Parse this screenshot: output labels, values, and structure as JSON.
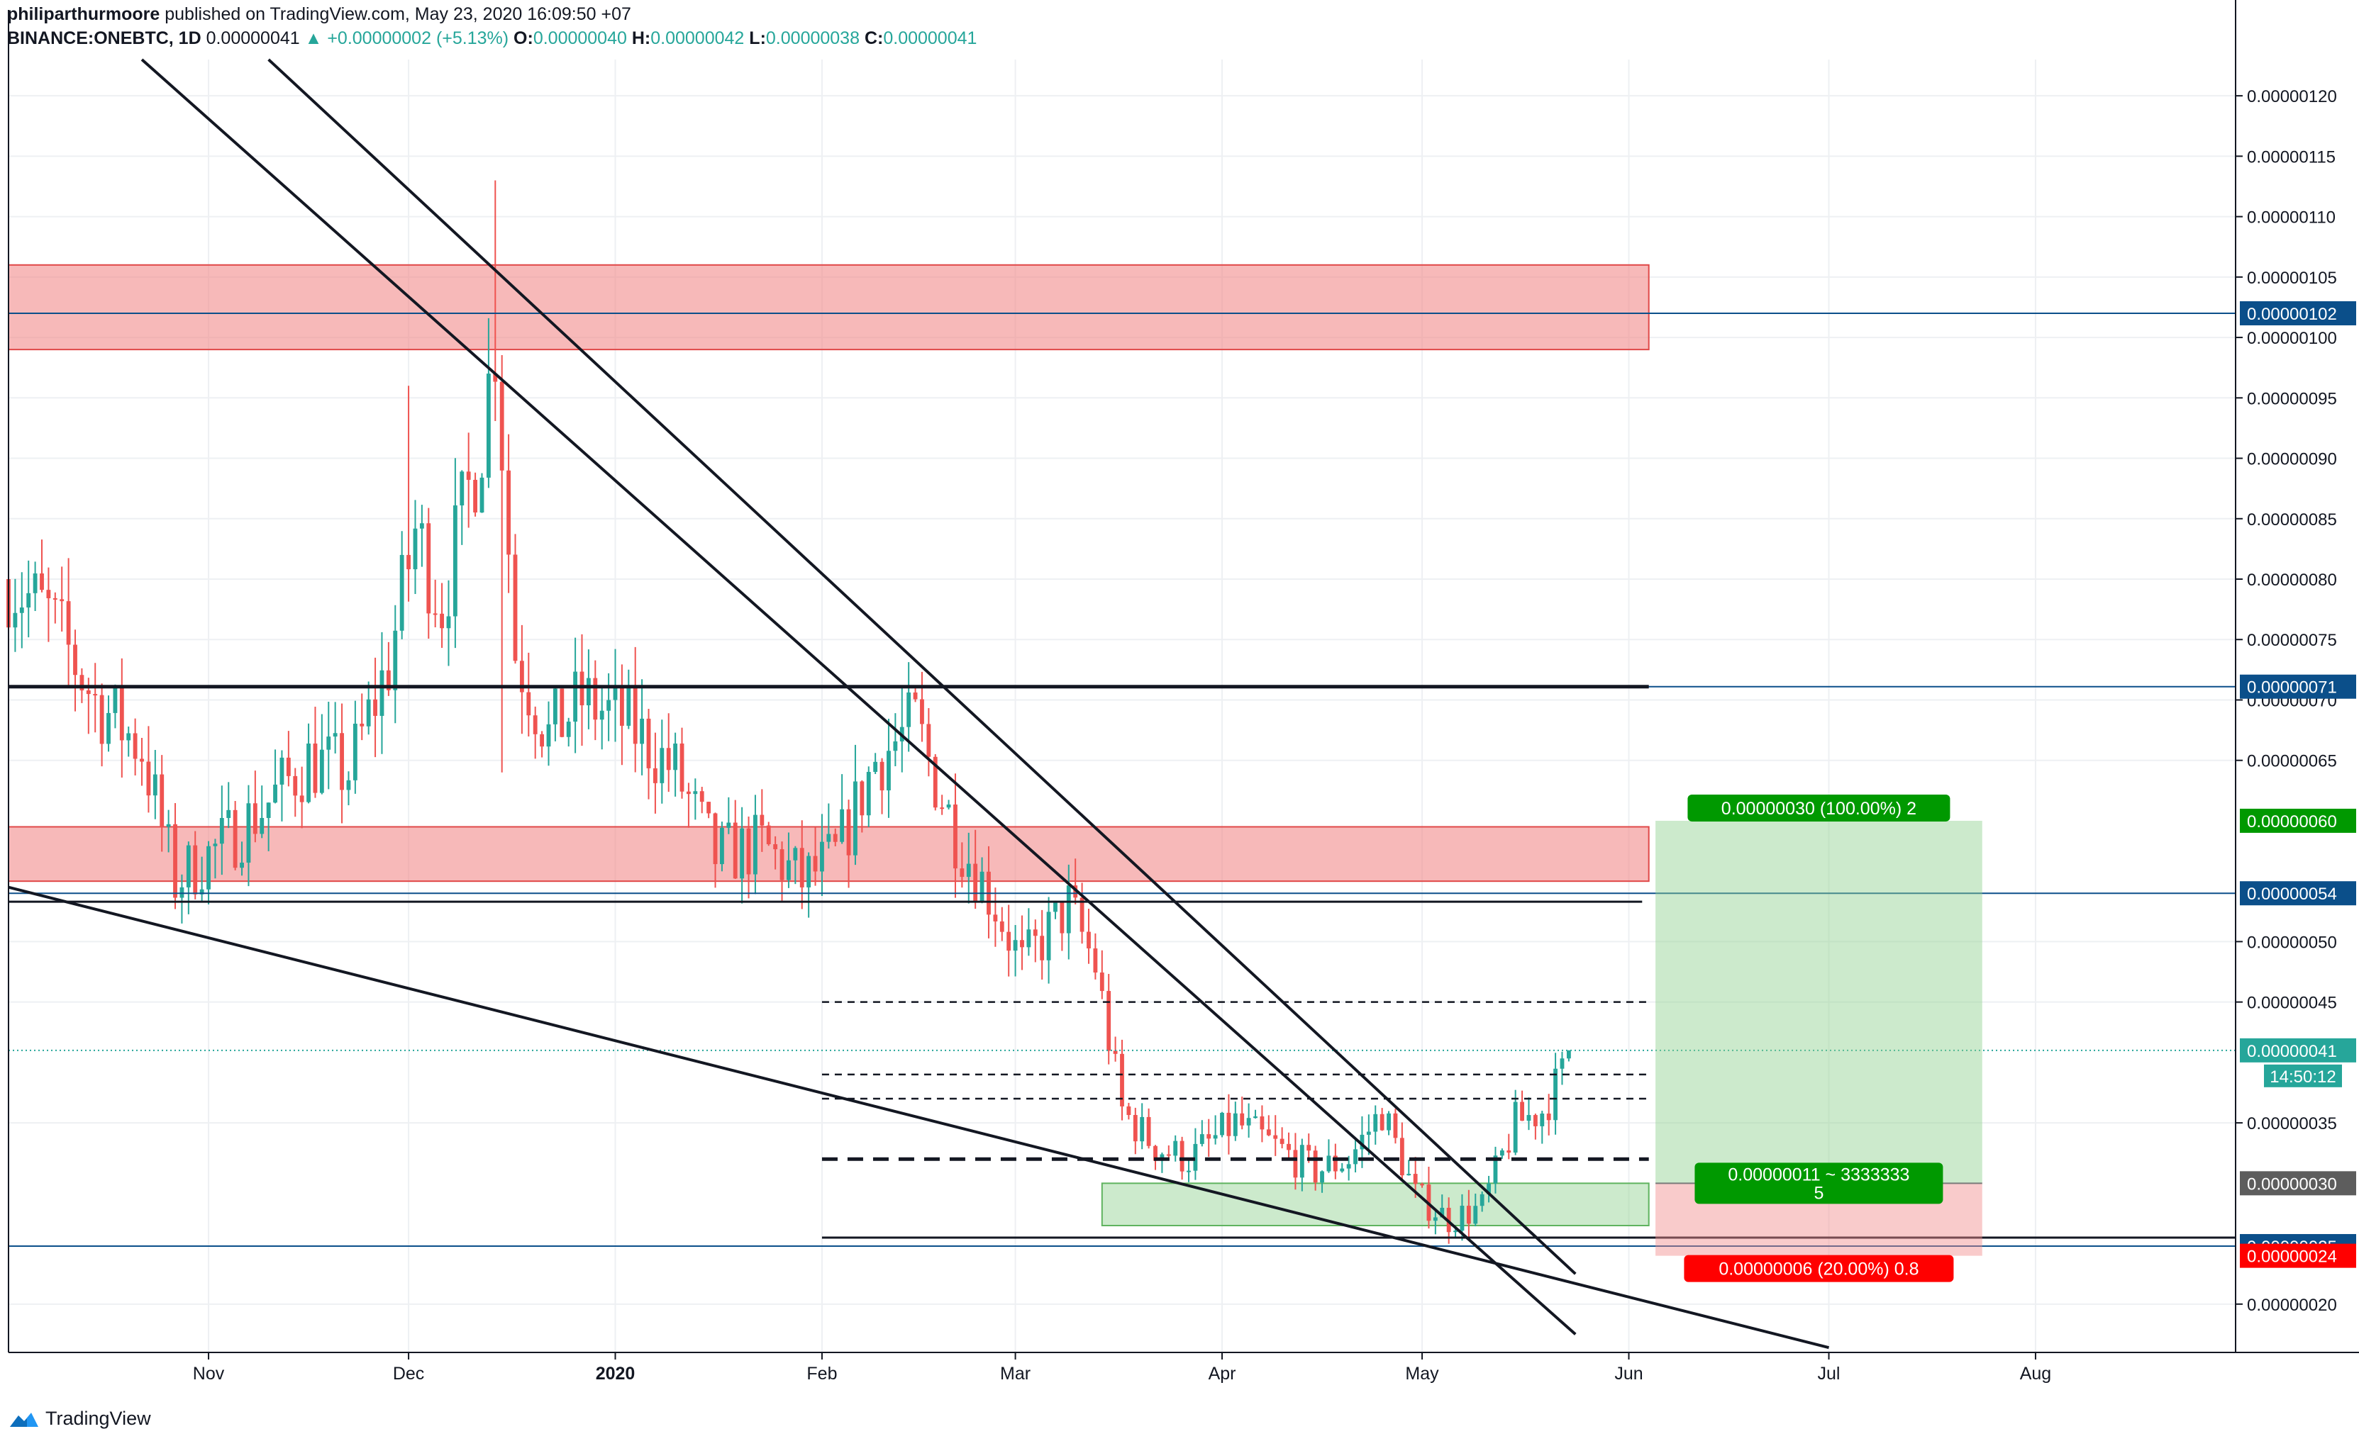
{
  "header": {
    "author": "philiparthurmoore",
    "published_text": "published on TradingView.com, May 23, 2020 16:09:50 +07",
    "symbol": "BINANCE:ONEBTC, 1D",
    "last": "0.00000041",
    "change": "▲ +0.00000002 (+5.13%)",
    "o_label": "O:",
    "o": "0.00000040",
    "h_label": "H:",
    "h": "0.00000042",
    "l_label": "L:",
    "l": "0.00000038",
    "c_label": "C:",
    "c": "0.00000041"
  },
  "footer": {
    "brand": "TradingView"
  },
  "colors": {
    "up": "#26a69a",
    "down": "#ef5350",
    "zone_red": "#f28b8b",
    "zone_green": "#8fd18f",
    "target_green": "#009900",
    "stop_red": "#ff0000",
    "level_blue": "#0b4f8a"
  },
  "chart_data": {
    "type": "candlestick",
    "symbol": "ONEBTC",
    "timeframe": "1D",
    "x_ticks": [
      "Nov",
      "Dec",
      "2020",
      "Feb",
      "Mar",
      "Apr",
      "May",
      "Jun",
      "Jul",
      "Aug"
    ],
    "x_tick_dates": [
      "2019-11-01",
      "2019-12-01",
      "2020-01-01",
      "2020-02-01",
      "2020-03-01",
      "2020-04-01",
      "2020-05-01",
      "2020-06-01",
      "2020-07-01",
      "2020-08-01"
    ],
    "y_ticks": [
      "0.00000120",
      "0.00000115",
      "0.00000110",
      "0.00000105",
      "0.00000100",
      "0.00000095",
      "0.00000090",
      "0.00000085",
      "0.00000080",
      "0.00000075",
      "0.00000070",
      "0.00000065",
      "0.00000050",
      "0.00000045",
      "0.00000035",
      "0.00000020"
    ],
    "y_range": [
      1.6e-07,
      1.23e-06
    ],
    "date_range": [
      "2019-10-02",
      "2020-08-31"
    ],
    "close_anchors": [
      [
        "2019-10-02",
        8e-07
      ],
      [
        "2019-10-08",
        7.7e-07
      ],
      [
        "2019-10-15",
        7e-07
      ],
      [
        "2019-10-22",
        6.6e-07
      ],
      [
        "2019-10-27",
        5.5e-07
      ],
      [
        "2019-11-03",
        5.8e-07
      ],
      [
        "2019-11-09",
        6.1e-07
      ],
      [
        "2019-11-16",
        6.5e-07
      ],
      [
        "2019-11-22",
        6.4e-07
      ],
      [
        "2019-11-28",
        7.3e-07
      ],
      [
        "2019-12-02",
        8.4e-07
      ],
      [
        "2019-12-06",
        7.8e-07
      ],
      [
        "2019-12-12",
        9.2e-07
      ],
      [
        "2019-12-14",
        1e-06
      ],
      [
        "2019-12-17",
        7.4e-07
      ],
      [
        "2019-12-22",
        6.7e-07
      ],
      [
        "2019-12-27",
        7e-07
      ],
      [
        "2020-01-03",
        6.8e-07
      ],
      [
        "2020-01-10",
        6.4e-07
      ],
      [
        "2020-01-16",
        5.7e-07
      ],
      [
        "2020-01-23",
        5.8e-07
      ],
      [
        "2020-01-29",
        5.5e-07
      ],
      [
        "2020-02-03",
        5.7e-07
      ],
      [
        "2020-02-09",
        6.5e-07
      ],
      [
        "2020-02-15",
        6.8e-07
      ],
      [
        "2020-02-21",
        5.9e-07
      ],
      [
        "2020-02-27",
        5.3e-07
      ],
      [
        "2020-03-02",
        4.8e-07
      ],
      [
        "2020-03-09",
        5.3e-07
      ],
      [
        "2020-03-13",
        4.8e-07
      ],
      [
        "2020-03-17",
        3.6e-07
      ],
      [
        "2020-03-22",
        3.3e-07
      ],
      [
        "2020-03-27",
        3.2e-07
      ],
      [
        "2020-04-03",
        3.5e-07
      ],
      [
        "2020-04-09",
        3.3e-07
      ],
      [
        "2020-04-15",
        3.1e-07
      ],
      [
        "2020-04-20",
        3.2e-07
      ],
      [
        "2020-04-25",
        3.6e-07
      ],
      [
        "2020-04-30",
        2.9e-07
      ],
      [
        "2020-05-05",
        2.7e-07
      ],
      [
        "2020-05-10",
        2.8e-07
      ],
      [
        "2020-05-15",
        3.5e-07
      ],
      [
        "2020-05-19",
        3.6e-07
      ],
      [
        "2020-05-22",
        3.9e-07
      ],
      [
        "2020-05-23",
        4.1e-07
      ]
    ],
    "spikes": [
      {
        "date": "2019-12-14",
        "high": 1.13e-06
      },
      {
        "date": "2019-12-15",
        "low": 6.4e-07
      },
      {
        "date": "2019-12-01",
        "high": 9.6e-07
      }
    ],
    "last_price": 4.1e-07,
    "zones": [
      {
        "type": "resistance",
        "from": "2019-10-02",
        "to": "2020-06-04",
        "low": 9.9e-07,
        "high": 1.06e-06
      },
      {
        "type": "resistance",
        "from": "2019-10-02",
        "to": "2020-06-04",
        "low": 5.5e-07,
        "high": 5.95e-07
      },
      {
        "type": "support",
        "from": "2020-03-14",
        "to": "2020-06-04",
        "low": 2.65e-07,
        "high": 3e-07
      }
    ],
    "horizontal_lines": [
      {
        "price": 7.11e-07,
        "from": "2019-10-02",
        "to": "2020-06-04",
        "style": "solid-bold"
      },
      {
        "price": 5.33e-07,
        "from": "2019-10-02",
        "to": "2020-06-03",
        "style": "solid"
      },
      {
        "price": 2.55e-07,
        "from": "2020-02-01",
        "to": "2020-08-31",
        "style": "solid"
      },
      {
        "price": 4.5e-07,
        "from": "2020-02-01",
        "to": "2020-06-04",
        "style": "dashed"
      },
      {
        "price": 3.9e-07,
        "from": "2020-02-01",
        "to": "2020-06-04",
        "style": "dashed"
      },
      {
        "price": 3.7e-07,
        "from": "2020-02-01",
        "to": "2020-06-04",
        "style": "dashed"
      },
      {
        "price": 3.2e-07,
        "from": "2020-02-01",
        "to": "2020-06-04",
        "style": "dashed-bold"
      }
    ],
    "price_lines": [
      {
        "price": 1.02e-06,
        "style": "blue"
      },
      {
        "price": 7.11e-07,
        "style": "blue"
      },
      {
        "price": 5.4e-07,
        "style": "blue"
      },
      {
        "price": 2.48e-07,
        "style": "blue"
      },
      {
        "price": 4.1e-07,
        "style": "dotted-teal"
      }
    ],
    "trendlines": [
      {
        "from": [
          "2019-10-22",
          1.23e-06
        ],
        "to": [
          "2020-05-24",
          1.75e-07
        ]
      },
      {
        "from": [
          "2019-11-10",
          1.23e-06
        ],
        "to": [
          "2020-05-24",
          2.25e-07
        ]
      },
      {
        "from": [
          "2019-10-02",
          5.45e-07
        ],
        "to": [
          "2020-07-01",
          1.64e-07
        ]
      }
    ],
    "long_position": {
      "from": "2020-06-05",
      "to": "2020-07-24",
      "entry": 3e-07,
      "target": 6e-07,
      "stop": 2.4e-07,
      "target_label": "0.00000030 (100.00%) 2",
      "center_label": "0.00000011 ~ 3333333",
      "center_label_2": "5",
      "stop_label": "0.00000006 (20.00%) 0.8"
    },
    "price_badges": [
      {
        "text": "0.00000102",
        "price": 1.02e-06,
        "color": "#0b4f8a"
      },
      {
        "text": "0.00000071",
        "price": 7.11e-07,
        "color": "#0b4f8a"
      },
      {
        "text": "0.00000060",
        "price": 6e-07,
        "color": "#009900"
      },
      {
        "text": "0.00000054",
        "price": 5.4e-07,
        "color": "#0b4f8a"
      },
      {
        "text": "0.00000041",
        "price": 4.1e-07,
        "color": "#26a69a"
      },
      {
        "text": "0.00000030",
        "price": 3e-07,
        "color": "#5d5d5d"
      },
      {
        "text": "0.00000025",
        "price": 2.48e-07,
        "color": "#0b4f8a"
      },
      {
        "text": "0.00000024",
        "price": 2.4e-07,
        "color": "#ff0000"
      }
    ],
    "countdown": "14:50:12"
  }
}
